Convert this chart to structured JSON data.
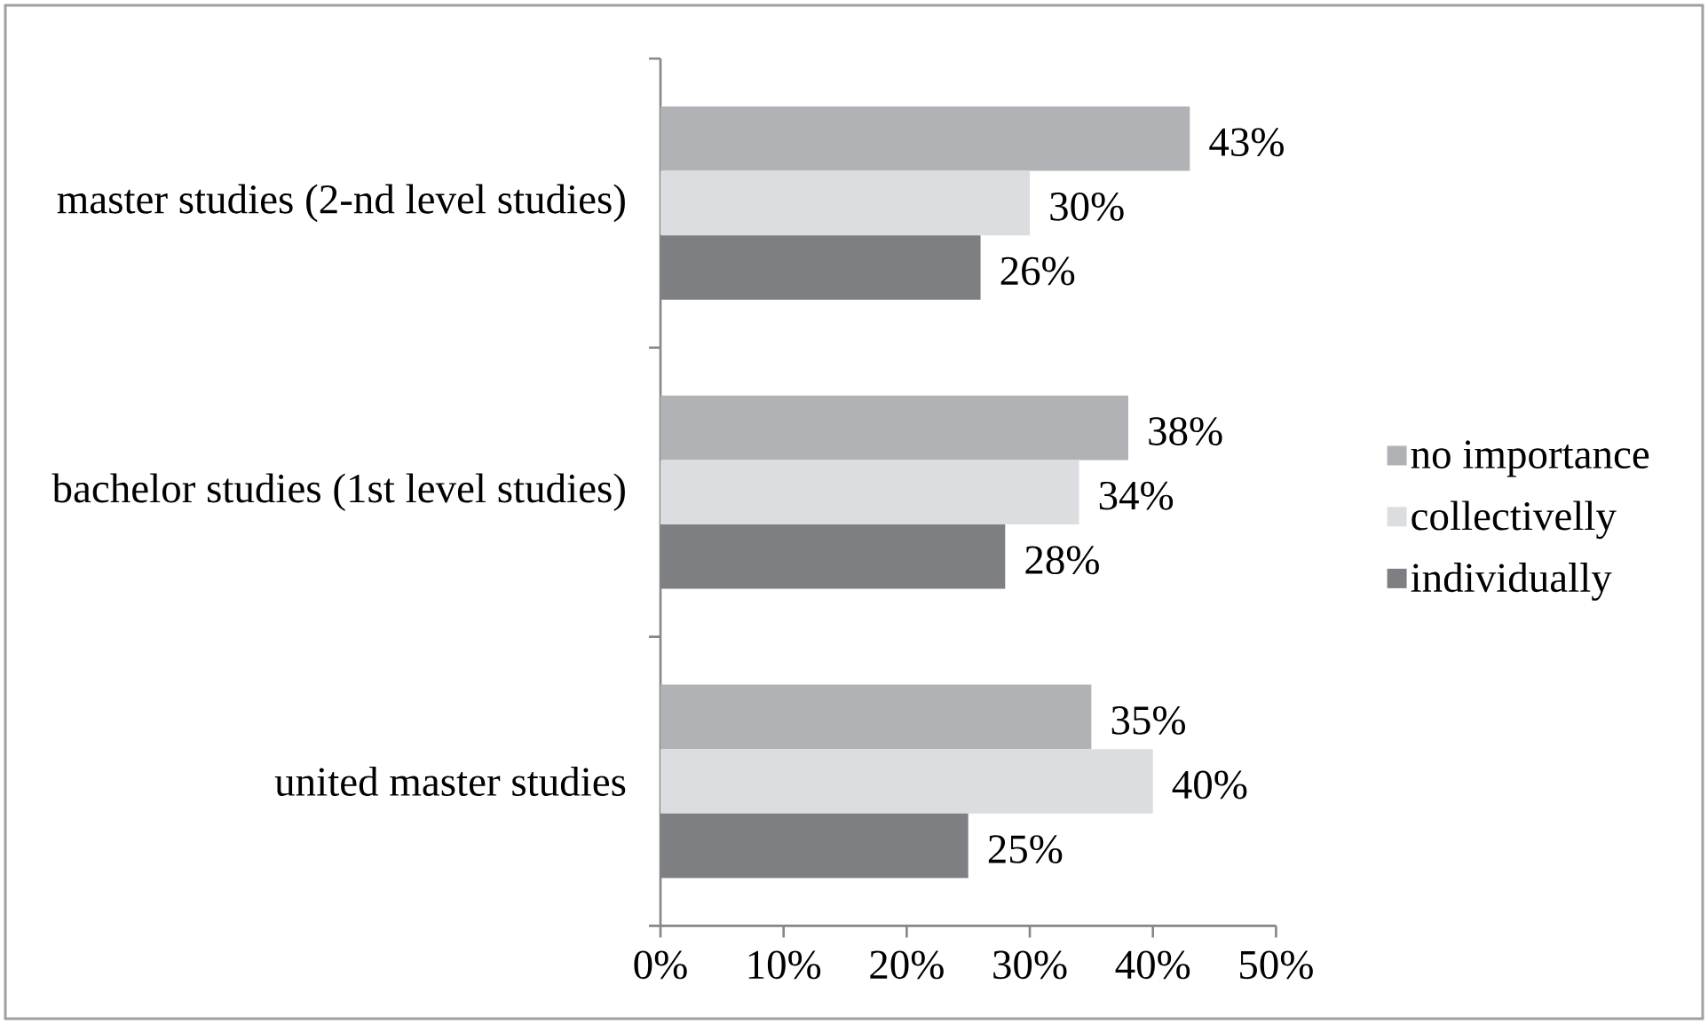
{
  "chart_data": {
    "type": "bar",
    "orientation": "horizontal",
    "categories": [
      "master studies (2-nd level studies)",
      "bachelor studies (1st level studies)",
      "united master studies"
    ],
    "series": [
      {
        "name": "no importance",
        "color": "#b1b2b6",
        "values": [
          43,
          38,
          35
        ],
        "value_labels": [
          "43%",
          "38%",
          "35%"
        ]
      },
      {
        "name": "collectivelly",
        "color": "#dcdde0",
        "values": [
          30,
          34,
          40
        ],
        "value_labels": [
          "30%",
          "34%",
          "40%"
        ]
      },
      {
        "name": "individually",
        "color": "#7e7f83",
        "values": [
          26,
          28,
          25
        ],
        "value_labels": [
          "26%",
          "28%",
          "25%"
        ]
      }
    ],
    "xlim": [
      0,
      50
    ],
    "xticks": [
      {
        "value": 0,
        "label": "0%"
      },
      {
        "value": 10,
        "label": "10%"
      },
      {
        "value": 20,
        "label": "20%"
      },
      {
        "value": 30,
        "label": "30%"
      },
      {
        "value": 40,
        "label": "40%"
      },
      {
        "value": 50,
        "label": "50%"
      }
    ],
    "legend": "right"
  }
}
